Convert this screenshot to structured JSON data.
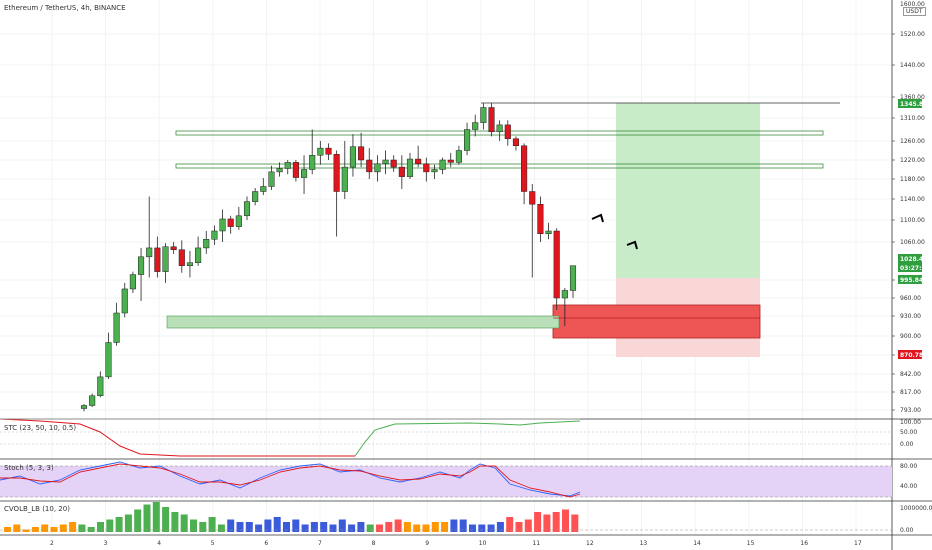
{
  "header": {
    "symbol": "Ethereum / TetherUS, 4h, BINANCE",
    "currency": "USDT",
    "top_price": "1600.00"
  },
  "colors": {
    "up": "#4caf50",
    "down": "#e0161e",
    "long_zone": "#c8ebc8",
    "short_zone": "#f9d7d7",
    "support_zone": "#b9e0b9",
    "entry_zone": "#ee5555",
    "stoch_bg": "#e5d2f7"
  },
  "chart_data": {
    "type": "candlestick",
    "main": {
      "y_ticks": [
        "1520.00",
        "1440.00",
        "1360.00",
        "1310.00",
        "1260.00",
        "1220.00",
        "1180.00",
        "1140.00",
        "1100.00",
        "1060.00",
        "995.84",
        "960.00",
        "930.00",
        "900.00",
        "870.78",
        "842.00",
        "817.00",
        "793.00"
      ],
      "x_ticks": [
        "2",
        "3",
        "4",
        "5",
        "6",
        "7",
        "8",
        "9",
        "10",
        "11",
        "12",
        "13",
        "14",
        "15",
        "16",
        "17"
      ],
      "candles": [
        [
          795,
          801,
          791,
          799
        ],
        [
          799,
          815,
          797,
          812
        ],
        [
          812,
          846,
          810,
          838
        ],
        [
          838,
          905,
          835,
          890
        ],
        [
          890,
          952,
          885,
          935
        ],
        [
          935,
          990,
          928,
          978
        ],
        [
          978,
          1010,
          970,
          1005
        ],
        [
          1005,
          1050,
          955,
          1035
        ],
        [
          1035,
          1145,
          1000,
          1050
        ],
        [
          1050,
          1070,
          1000,
          1010
        ],
        [
          1010,
          1058,
          990,
          1052
        ],
        [
          1052,
          1060,
          1040,
          1047
        ],
        [
          1047,
          1063,
          1008,
          1020
        ],
        [
          1020,
          1045,
          1000,
          1025
        ],
        [
          1025,
          1070,
          1020,
          1050
        ],
        [
          1050,
          1080,
          1040,
          1065
        ],
        [
          1065,
          1090,
          1055,
          1080
        ],
        [
          1080,
          1120,
          1060,
          1102
        ],
        [
          1102,
          1108,
          1075,
          1088
        ],
        [
          1088,
          1125,
          1082,
          1108
        ],
        [
          1108,
          1145,
          1100,
          1135
        ],
        [
          1135,
          1162,
          1128,
          1155
        ],
        [
          1155,
          1182,
          1148,
          1165
        ],
        [
          1165,
          1208,
          1158,
          1195
        ],
        [
          1195,
          1215,
          1185,
          1202
        ],
        [
          1202,
          1220,
          1190,
          1215
        ],
        [
          1215,
          1220,
          1175,
          1183
        ],
        [
          1183,
          1230,
          1150,
          1200
        ],
        [
          1200,
          1285,
          1190,
          1230
        ],
        [
          1230,
          1260,
          1210,
          1245
        ],
        [
          1245,
          1255,
          1220,
          1232
        ],
        [
          1232,
          1240,
          1070,
          1155
        ],
        [
          1155,
          1260,
          1140,
          1205
        ],
        [
          1205,
          1275,
          1185,
          1248
        ],
        [
          1248,
          1278,
          1205,
          1220
        ],
        [
          1220,
          1245,
          1180,
          1195
        ],
        [
          1195,
          1230,
          1175,
          1212
        ],
        [
          1212,
          1240,
          1190,
          1220
        ],
        [
          1220,
          1230,
          1195,
          1205
        ],
        [
          1205,
          1230,
          1160,
          1185
        ],
        [
          1185,
          1235,
          1180,
          1222
        ],
        [
          1222,
          1250,
          1205,
          1212
        ],
        [
          1212,
          1225,
          1175,
          1195
        ],
        [
          1195,
          1210,
          1180,
          1200
        ],
        [
          1200,
          1225,
          1190,
          1220
        ],
        [
          1220,
          1235,
          1205,
          1215
        ],
        [
          1215,
          1250,
          1210,
          1240
        ],
        [
          1240,
          1300,
          1230,
          1285
        ],
        [
          1285,
          1318,
          1270,
          1300
        ],
        [
          1300,
          1345,
          1285,
          1335
        ],
        [
          1335,
          1345,
          1270,
          1280
        ],
        [
          1280,
          1305,
          1260,
          1295
        ],
        [
          1295,
          1305,
          1250,
          1265
        ],
        [
          1265,
          1270,
          1240,
          1250
        ],
        [
          1250,
          1255,
          1130,
          1155
        ],
        [
          1155,
          1170,
          1000,
          1130
        ],
        [
          1130,
          1145,
          1060,
          1075
        ],
        [
          1075,
          1095,
          1065,
          1080
        ],
        [
          1080,
          1085,
          940,
          960
        ],
        [
          960,
          980,
          915,
          975
        ],
        [
          975,
          1020,
          960,
          1020
        ]
      ],
      "long_target": 1345.86,
      "entry": 995.84,
      "stop": 870.78,
      "last_price": "1028.42",
      "countdown": "03:27:16",
      "resistance_1": 1275,
      "resistance_2": 1210,
      "support_zone": [
        920,
        940
      ]
    },
    "stc": {
      "label": "STC (23, 50, 10, 0.5)",
      "ticks": [
        "100.00",
        "50.00",
        "0.00"
      ]
    },
    "stoch": {
      "label": "Stoch (5, 3, 3)",
      "ticks": [
        "80.00",
        "40.00"
      ]
    },
    "cvol": {
      "label": "CVOLB_LB (10, 20)",
      "ticks": [
        "1000000.00",
        "0.00"
      ]
    }
  }
}
